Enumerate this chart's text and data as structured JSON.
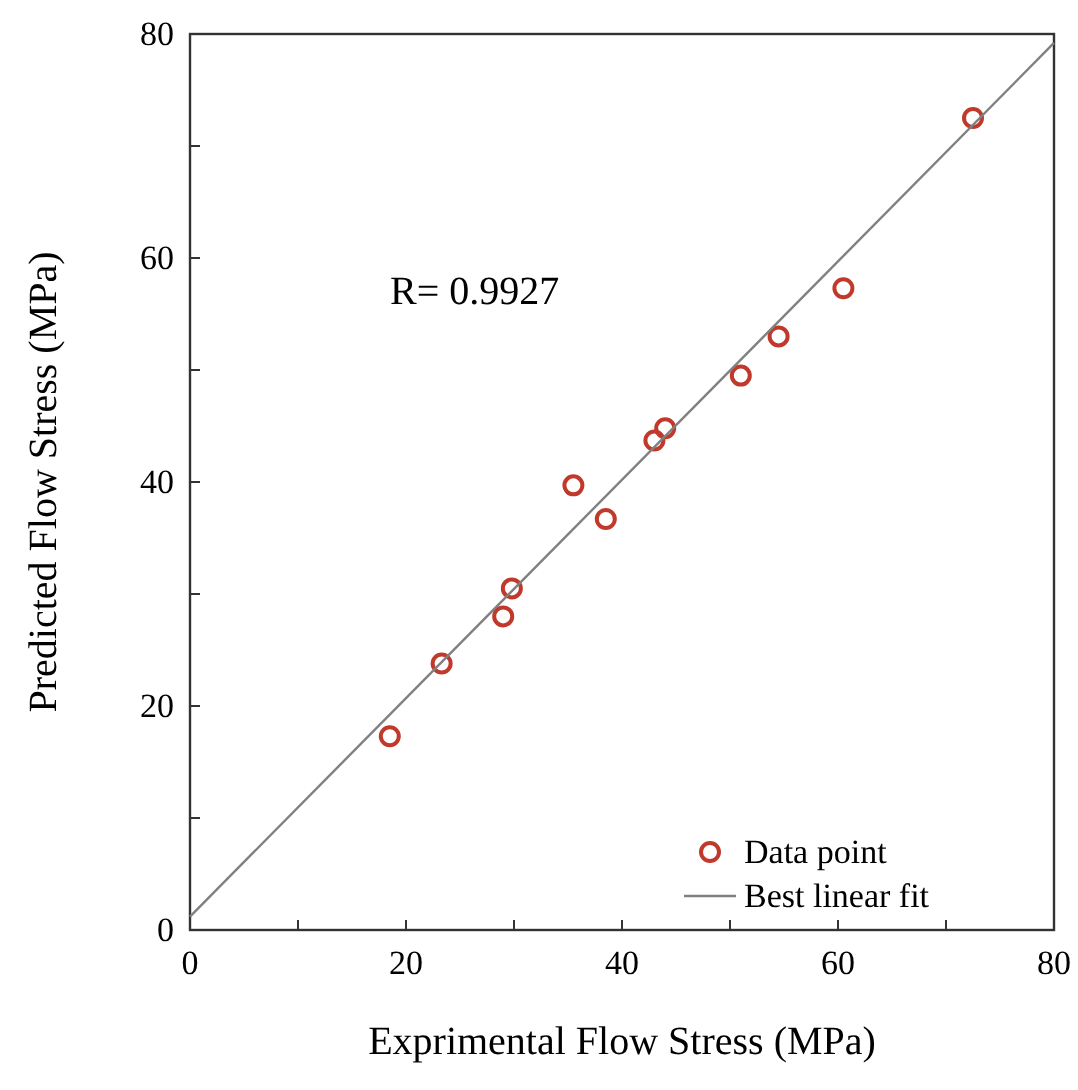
{
  "chart_data": {
    "type": "scatter",
    "xlabel": "Exprimental Flow Stress (MPa)",
    "ylabel": "Predicted Flow Stress (MPa)",
    "xlim": [
      0,
      80
    ],
    "ylim": [
      0,
      80
    ],
    "xticks": [
      0,
      {
        "value": 10,
        "label": null
      },
      20,
      {
        "value": 30,
        "label": null
      },
      40,
      {
        "value": 50,
        "label": null
      },
      60,
      {
        "value": 70,
        "label": null
      },
      80
    ],
    "yticks": [
      0,
      {
        "value": 10,
        "label": null
      },
      20,
      {
        "value": 30,
        "label": null
      },
      40,
      {
        "value": 50,
        "label": null
      },
      60,
      {
        "value": 70,
        "label": null
      },
      80
    ],
    "series": [
      {
        "name": "Data point",
        "color": "#c0392b",
        "marker": "circle",
        "x": [
          18.5,
          23.3,
          29,
          29.8,
          35.5,
          38.5,
          43,
          44,
          51,
          54.5,
          60.5,
          72.5
        ],
        "values": [
          17.3,
          23.8,
          28,
          30.5,
          39.7,
          36.7,
          43.7,
          44.8,
          49.5,
          53,
          57.3,
          72.5
        ]
      },
      {
        "name": "Best linear fit",
        "type": "line",
        "color": "#808080",
        "marker": "none",
        "line_style": "solid",
        "x": [
          0,
          80
        ],
        "values": [
          1.2,
          79.2
        ]
      }
    ],
    "annotations": [
      "R= 0.9927"
    ],
    "legend": "bottom right",
    "grid": false
  }
}
